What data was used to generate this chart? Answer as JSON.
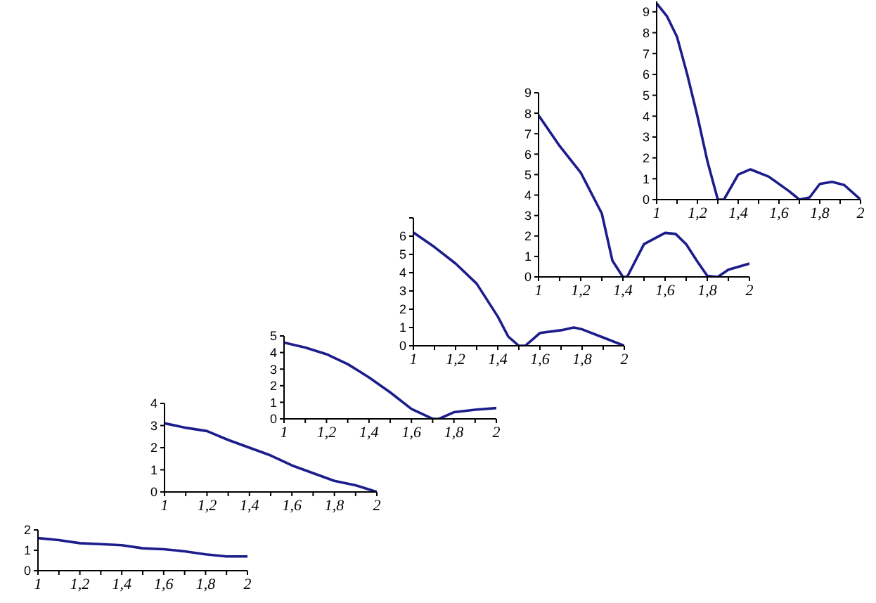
{
  "chart_data": [
    {
      "type": "line",
      "x": [
        1,
        1.1,
        1.2,
        1.3,
        1.4,
        1.5,
        1.6,
        1.7,
        1.8,
        1.9,
        2
      ],
      "series": [
        {
          "color": "#1c1c8c",
          "values": [
            1.6,
            1.5,
            1.35,
            1.3,
            1.25,
            1.1,
            1.05,
            0.95,
            0.8,
            0.7,
            0.7
          ]
        }
      ],
      "xlim": [
        1,
        2
      ],
      "ylim": [
        0,
        2
      ],
      "yticks": [
        0,
        1,
        2
      ],
      "xticks": [
        {
          "value": 1,
          "label": "1"
        },
        {
          "value": 1.1,
          "label": null
        },
        {
          "value": 1.2,
          "label": "1,2"
        },
        {
          "value": 1.3,
          "label": null
        },
        {
          "value": 1.4,
          "label": "1,4"
        },
        {
          "value": 1.5,
          "label": null
        },
        {
          "value": 1.6,
          "label": "1,6"
        },
        {
          "value": 1.7,
          "label": null
        },
        {
          "value": 1.8,
          "label": "1,8"
        },
        {
          "value": 1.9,
          "label": null
        },
        {
          "value": 2,
          "label": "2"
        }
      ],
      "grid": false,
      "legend": false,
      "marker": "none"
    },
    {
      "type": "line",
      "x": [
        1,
        1.1,
        1.2,
        1.3,
        1.4,
        1.5,
        1.6,
        1.7,
        1.8,
        1.9,
        2
      ],
      "series": [
        {
          "color": "#1c1c8c",
          "values": [
            3.1,
            2.9,
            2.75,
            2.35,
            2.0,
            1.65,
            1.2,
            0.85,
            0.5,
            0.3,
            0
          ]
        }
      ],
      "xlim": [
        1,
        2
      ],
      "ylim": [
        0,
        4
      ],
      "yticks": [
        0,
        1,
        2,
        3,
        4
      ],
      "xticks": [
        {
          "value": 1,
          "label": "1"
        },
        {
          "value": 1.1,
          "label": null
        },
        {
          "value": 1.2,
          "label": "1,2"
        },
        {
          "value": 1.3,
          "label": null
        },
        {
          "value": 1.4,
          "label": "1,4"
        },
        {
          "value": 1.5,
          "label": null
        },
        {
          "value": 1.6,
          "label": "1,6"
        },
        {
          "value": 1.7,
          "label": null
        },
        {
          "value": 1.8,
          "label": "1,8"
        },
        {
          "value": 1.9,
          "label": null
        },
        {
          "value": 2,
          "label": "2"
        }
      ],
      "grid": false,
      "legend": false,
      "marker": "none"
    },
    {
      "type": "line",
      "x": [
        1,
        1.1,
        1.2,
        1.3,
        1.4,
        1.5,
        1.6,
        1.65,
        1.7,
        1.73,
        1.8,
        1.9,
        2
      ],
      "series": [
        {
          "color": "#1c1c8c",
          "values": [
            4.6,
            4.3,
            3.9,
            3.3,
            2.5,
            1.6,
            0.6,
            0.3,
            0,
            0,
            0.4,
            0.55,
            0.65
          ]
        }
      ],
      "xlim": [
        1,
        2
      ],
      "ylim": [
        0,
        5
      ],
      "yticks": [
        0,
        1,
        2,
        3,
        4,
        5
      ],
      "xticks": [
        {
          "value": 1,
          "label": "1"
        },
        {
          "value": 1.1,
          "label": null
        },
        {
          "value": 1.2,
          "label": "1,2"
        },
        {
          "value": 1.3,
          "label": null
        },
        {
          "value": 1.4,
          "label": "1,4"
        },
        {
          "value": 1.5,
          "label": null
        },
        {
          "value": 1.6,
          "label": "1,6"
        },
        {
          "value": 1.7,
          "label": null
        },
        {
          "value": 1.8,
          "label": "1,8"
        },
        {
          "value": 1.9,
          "label": null
        },
        {
          "value": 2,
          "label": "2"
        }
      ],
      "grid": false,
      "legend": false,
      "marker": "none"
    },
    {
      "type": "line",
      "x": [
        1,
        1.1,
        1.2,
        1.3,
        1.4,
        1.45,
        1.5,
        1.53,
        1.6,
        1.7,
        1.76,
        1.8,
        1.9,
        2
      ],
      "series": [
        {
          "color": "#1c1c8c",
          "values": [
            6.2,
            5.4,
            4.5,
            3.4,
            1.6,
            0.5,
            0,
            0,
            0.7,
            0.85,
            1.0,
            0.9,
            0.45,
            0
          ]
        }
      ],
      "xlim": [
        1,
        2
      ],
      "ylim": [
        0,
        7
      ],
      "yticks": [
        0,
        1,
        2,
        3,
        4,
        5,
        6,
        {
          "value": 7,
          "label": null
        }
      ],
      "xticks": [
        {
          "value": 1,
          "label": "1"
        },
        {
          "value": 1.1,
          "label": null
        },
        {
          "value": 1.2,
          "label": "1,2"
        },
        {
          "value": 1.3,
          "label": null
        },
        {
          "value": 1.4,
          "label": "1,4"
        },
        {
          "value": 1.5,
          "label": null
        },
        {
          "value": 1.6,
          "label": "1,6"
        },
        {
          "value": 1.7,
          "label": null
        },
        {
          "value": 1.8,
          "label": "1,8"
        },
        {
          "value": 1.9,
          "label": null
        },
        {
          "value": 2,
          "label": "2"
        }
      ],
      "grid": false,
      "legend": false,
      "marker": "none"
    },
    {
      "type": "line",
      "x": [
        1,
        1.1,
        1.2,
        1.3,
        1.35,
        1.4,
        1.42,
        1.5,
        1.6,
        1.65,
        1.7,
        1.75,
        1.8,
        1.85,
        1.9,
        2
      ],
      "series": [
        {
          "color": "#1c1c8c",
          "values": [
            7.9,
            6.4,
            5.1,
            3.1,
            0.8,
            0,
            0,
            1.6,
            2.15,
            2.1,
            1.6,
            0.8,
            0.05,
            0,
            0.35,
            0.65
          ]
        }
      ],
      "xlim": [
        1,
        2
      ],
      "ylim": [
        0,
        9
      ],
      "yticks": [
        0,
        1,
        2,
        3,
        4,
        5,
        6,
        7,
        8,
        9
      ],
      "xticks": [
        {
          "value": 1,
          "label": "1"
        },
        {
          "value": 1.1,
          "label": null
        },
        {
          "value": 1.2,
          "label": "1,2"
        },
        {
          "value": 1.3,
          "label": null
        },
        {
          "value": 1.4,
          "label": "1,4"
        },
        {
          "value": 1.5,
          "label": null
        },
        {
          "value": 1.6,
          "label": "1,6"
        },
        {
          "value": 1.7,
          "label": null
        },
        {
          "value": 1.8,
          "label": "1,8"
        },
        {
          "value": 1.9,
          "label": null
        },
        {
          "value": 2,
          "label": "2"
        }
      ],
      "grid": false,
      "legend": false,
      "marker": "none"
    },
    {
      "type": "line",
      "x": [
        1,
        1.05,
        1.1,
        1.15,
        1.2,
        1.25,
        1.3,
        1.33,
        1.4,
        1.46,
        1.55,
        1.65,
        1.7,
        1.75,
        1.8,
        1.86,
        1.92,
        2
      ],
      "series": [
        {
          "color": "#1c1c8c",
          "values": [
            9.4,
            8.8,
            7.8,
            6.0,
            4.0,
            1.8,
            0,
            0,
            1.2,
            1.45,
            1.1,
            0.4,
            0,
            0.1,
            0.75,
            0.85,
            0.7,
            0
          ]
        }
      ],
      "xlim": [
        1,
        2
      ],
      "ylim": [
        0,
        9.5
      ],
      "yticks": [
        0,
        1,
        2,
        3,
        4,
        5,
        6,
        7,
        8,
        9
      ],
      "xticks": [
        {
          "value": 1,
          "label": "1"
        },
        {
          "value": 1.1,
          "label": null
        },
        {
          "value": 1.2,
          "label": "1,2"
        },
        {
          "value": 1.3,
          "label": null
        },
        {
          "value": 1.4,
          "label": "1,4"
        },
        {
          "value": 1.5,
          "label": null
        },
        {
          "value": 1.6,
          "label": "1,6"
        },
        {
          "value": 1.7,
          "label": null
        },
        {
          "value": 1.8,
          "label": "1,8"
        },
        {
          "value": 1.9,
          "label": null
        },
        {
          "value": 2,
          "label": "2"
        }
      ],
      "grid": false,
      "legend": false,
      "marker": "none"
    }
  ]
}
